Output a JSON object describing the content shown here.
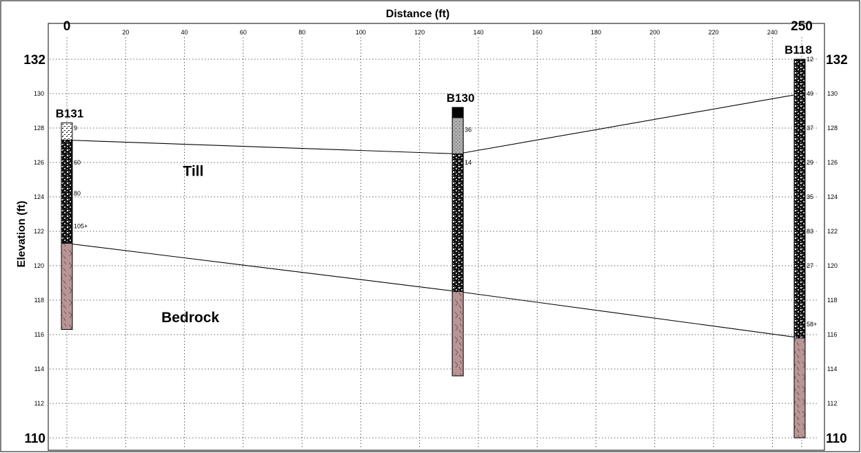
{
  "chart_data": {
    "type": "cross-section",
    "title": "",
    "xlabel": "Distance (ft)",
    "ylabel": "Elevation (ft)",
    "xlim": [
      0,
      250
    ],
    "ylim": [
      110,
      132
    ],
    "x_ticks": [
      20,
      40,
      60,
      80,
      100,
      120,
      140,
      160,
      180,
      200,
      220,
      240
    ],
    "x_end_labels": [
      "0",
      "250"
    ],
    "y_ticks": [
      112,
      114,
      116,
      118,
      120,
      122,
      124,
      126,
      128,
      130
    ],
    "y_end_labels": [
      "110",
      "132"
    ],
    "grid": true,
    "borings": [
      {
        "name": "B131",
        "x": 0,
        "top": 128.3,
        "bottom": 116.3,
        "layers": [
          {
            "top": 128.3,
            "bottom": 127.3,
            "material": "fill"
          },
          {
            "top": 127.3,
            "bottom": 121.3,
            "material": "till"
          },
          {
            "top": 121.3,
            "bottom": 116.3,
            "material": "bedrock"
          }
        ],
        "blow_counts": [
          {
            "depth": 128.0,
            "value": "9"
          },
          {
            "depth": 126.0,
            "value": "60"
          },
          {
            "depth": 124.2,
            "value": "80"
          },
          {
            "depth": 122.3,
            "value": "105+"
          }
        ]
      },
      {
        "name": "B130",
        "x": 133,
        "top": 129.2,
        "bottom": 113.6,
        "layers": [
          {
            "top": 129.2,
            "bottom": 128.6,
            "material": "topsoil"
          },
          {
            "top": 128.6,
            "bottom": 126.5,
            "material": "sand"
          },
          {
            "top": 126.5,
            "bottom": 118.5,
            "material": "till"
          },
          {
            "top": 118.5,
            "bottom": 113.6,
            "material": "bedrock"
          }
        ],
        "blow_counts": [
          {
            "depth": 127.9,
            "value": "36"
          },
          {
            "depth": 126.0,
            "value": "14"
          }
        ]
      },
      {
        "name": "B118",
        "x": 250,
        "top": 132,
        "bottom": 110,
        "layers": [
          {
            "top": 132,
            "bottom": 115.8,
            "material": "till"
          },
          {
            "top": 115.8,
            "bottom": 110,
            "material": "bedrock"
          }
        ],
        "blow_counts": [
          {
            "depth": 132,
            "value": "12"
          },
          {
            "depth": 130,
            "value": "49"
          },
          {
            "depth": 128,
            "value": "37"
          },
          {
            "depth": 126,
            "value": "29"
          },
          {
            "depth": 124,
            "value": "35"
          },
          {
            "depth": 122,
            "value": "83"
          },
          {
            "depth": 120,
            "value": "27"
          },
          {
            "depth": 116.6,
            "value": "58+"
          }
        ]
      }
    ],
    "contacts": [
      {
        "name": "till-top",
        "points": [
          [
            0,
            127.3
          ],
          [
            133,
            126.5
          ],
          [
            250,
            130
          ]
        ]
      },
      {
        "name": "bedrock-top",
        "points": [
          [
            0,
            121.3
          ],
          [
            133,
            118.5
          ],
          [
            250,
            115.8
          ]
        ]
      }
    ],
    "region_labels": [
      {
        "text": "Till",
        "x": 43,
        "y": 125.5
      },
      {
        "text": "Bedrock",
        "x": 42,
        "y": 117
      }
    ],
    "material_colors": {
      "fill": "#f0f0f0",
      "till": "#000000",
      "sand": "#a8a8a8",
      "topsoil": "#000000",
      "bedrock": "#b89090"
    }
  }
}
